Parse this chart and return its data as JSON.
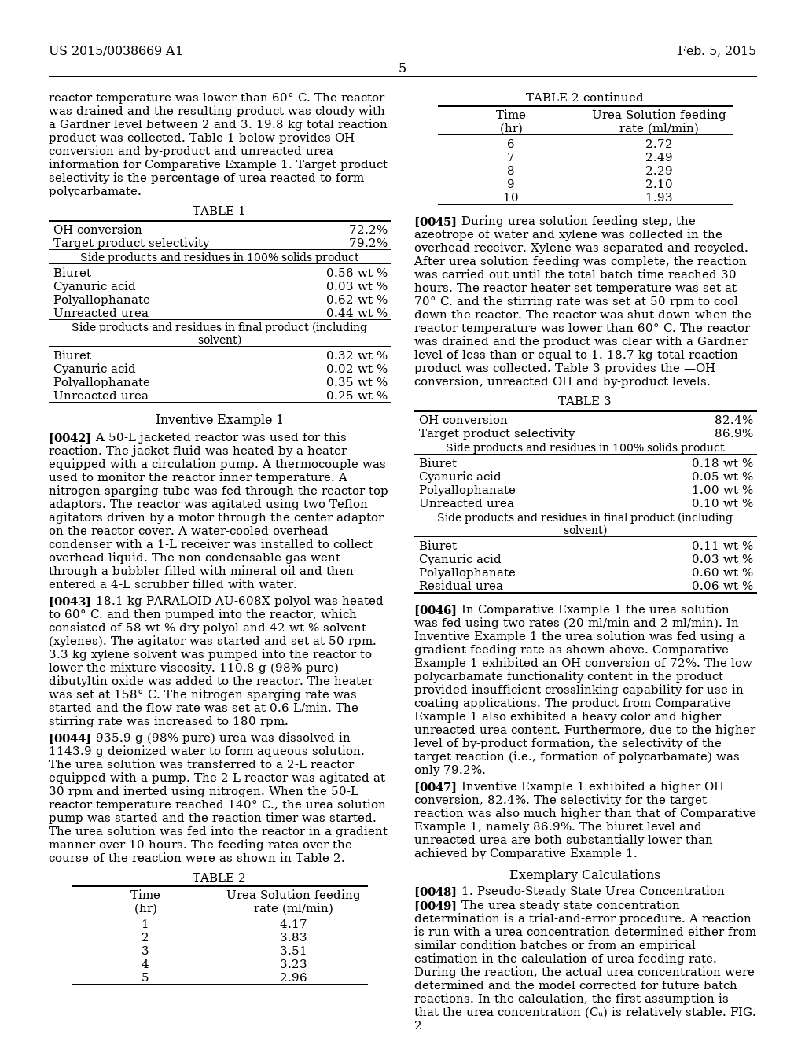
{
  "page_header_left": "US 2015/0038669 A1",
  "page_header_right": "Feb. 5, 2015",
  "page_number": "5",
  "left_col_intro": "reactor temperature was lower than 60° C. The reactor was drained and the resulting product was cloudy with a Gardner level between 2 and 3. 19.8 kg total reaction product was collected. Table 1 below provides OH conversion and by-product and unreacted urea information for Comparative Example 1. Target product selectivity is the percentage of urea reacted to form polycarbamate.",
  "table1_title": "TABLE 1",
  "table1_r1": [
    "OH conversion",
    "72.2%"
  ],
  "table1_r2": [
    "Target product selectivity",
    "79.2%"
  ],
  "table1_sub1": "Side products and residues in 100% solids product",
  "table1_g1": [
    [
      "Biuret",
      "0.56 wt %"
    ],
    [
      "Cyanuric acid",
      "0.03 wt %"
    ],
    [
      "Polyallophanate",
      "0.62 wt %"
    ],
    [
      "Unreacted urea",
      "0.44 wt %"
    ]
  ],
  "table1_sub2": "Side products and residues in final product (including solvent)",
  "table1_g2": [
    [
      "Biuret",
      "0.32 wt %"
    ],
    [
      "Cyanuric acid",
      "0.02 wt %"
    ],
    [
      "Polyallophanate",
      "0.35 wt %"
    ],
    [
      "Unreacted urea",
      "0.25 wt %"
    ]
  ],
  "inv_heading": "Inventive Example 1",
  "p0042": "A 50-L jacketed reactor was used for this reaction. The jacket fluid was heated by a heater equipped with a circulation pump. A thermocouple was used to monitor the reactor inner temperature. A nitrogen sparging tube was fed through the reactor top adaptors. The reactor was agitated using two Teflon agitators driven by a motor through the center adaptor on the reactor cover. A water-cooled overhead condenser with a 1-L receiver was installed to collect overhead liquid. The non-condensable gas went through a bubbler filled with mineral oil and then entered a 4-L scrubber filled with water.",
  "p0043": "18.1 kg PARALOID AU-608X polyol was heated to 60° C. and then pumped into the reactor, which consisted of 58 wt % dry polyol and 42 wt % solvent (xylenes). The agitator was started and set at 50 rpm. 3.3 kg xylene solvent was pumped into the reactor to lower the mixture viscosity. 110.8 g (98% pure) dibutyltin oxide was added to the reactor. The heater was set at 158° C. The nitrogen sparging rate was started and the flow rate was set at 0.6 L/min. The stirring rate was increased to 180 rpm.",
  "p0044": "935.9 g (98% pure) urea was dissolved in 1143.9 g deionized water to form aqueous solution. The urea solution was transferred to a 2-L reactor equipped with a pump. The 2-L reactor was agitated at 30 rpm and inerted using nitrogen. When the 50-L reactor temperature reached 140° C., the urea solution pump was started and the reaction timer was started. The urea solution was fed into the reactor in a gradient manner over 10 hours. The feeding rates over the course of the reaction were as shown in Table 2.",
  "table2_title": "TABLE 2",
  "table2_h1": "Time",
  "table2_h2": "(hr)",
  "table2_h3": "Urea Solution feeding",
  "table2_h4": "rate (ml/min)",
  "table2_rows": [
    [
      "1",
      "4.17"
    ],
    [
      "2",
      "3.83"
    ],
    [
      "3",
      "3.51"
    ],
    [
      "4",
      "3.23"
    ],
    [
      "5",
      "2.96"
    ]
  ],
  "table2c_title": "TABLE 2-continued",
  "table2c_rows": [
    [
      "6",
      "2.72"
    ],
    [
      "7",
      "2.49"
    ],
    [
      "8",
      "2.29"
    ],
    [
      "9",
      "2.10"
    ],
    [
      "10",
      "1.93"
    ]
  ],
  "p0045": "During urea solution feeding step, the azeotrope of water and xylene was collected in the overhead receiver. Xylene was separated and recycled. After urea solution feeding was complete, the reaction was carried out until the total batch time reached 30 hours. The reactor heater set temperature was set at 70° C. and the stirring rate was set at 50 rpm to cool down the reactor. The reactor was shut down when the reactor temperature was lower than 60° C. The reactor was drained and the product was clear with a Gardner level of less than or equal to 1. 18.7 kg total reaction product was collected. Table 3 provides the —OH conversion, unreacted OH and by-product levels.",
  "table3_title": "TABLE 3",
  "table3_r1": [
    "OH conversion",
    "82.4%"
  ],
  "table3_r2": [
    "Target product selectivity",
    "86.9%"
  ],
  "table3_sub1": "Side products and residues in 100% solids product",
  "table3_g1": [
    [
      "Biuret",
      "0.18 wt %"
    ],
    [
      "Cyanuric acid",
      "0.05 wt %"
    ],
    [
      "Polyallophanate",
      "1.00 wt %"
    ],
    [
      "Unreacted urea",
      "0.10 wt %"
    ]
  ],
  "table3_sub2": "Side products and residues in final product (including solvent)",
  "table3_g2": [
    [
      "Biuret",
      "0.11 wt %"
    ],
    [
      "Cyanuric acid",
      "0.03 wt %"
    ],
    [
      "Polyallophanate",
      "0.60 wt %"
    ],
    [
      "Residual urea",
      "0.06 wt %"
    ]
  ],
  "p0046": "In Comparative Example 1 the urea solution was fed using two rates (20 ml/min and 2 ml/min). In Inventive Example 1 the urea solution was fed using a gradient feeding rate as shown above. Comparative Example 1 exhibited an OH conversion of 72%. The low polycarbamate functionality content in the product provided insufficient crosslinking capability for use in coating applications. The product from Comparative Example 1 also exhibited a heavy color and higher unreacted urea content. Furthermore, due to the higher level of by-product formation, the selectivity of the target reaction (i.e., formation of polycarbamate) was only 79.2%.",
  "p0047": "Inventive Example 1 exhibited a higher OH conversion, 82.4%. The selectivity for the target reaction was also much higher than that of Comparative Example 1, namely 86.9%. The biuret level and unreacted urea are both substantially lower than achieved by Comparative Example 1.",
  "ex_calc_heading": "Exemplary Calculations",
  "p0048_line": "1. Pseudo-Steady State Urea Concentration",
  "p0049": "The urea steady state concentration determination is a trial-and-error procedure. A reaction is run with a urea concentration determined either from similar condition batches or from an empirical estimation in the calculation of urea feeding rate. During the reaction, the actual urea concentration were determined and the model corrected for future batch reactions. In the calculation, the first assumption is that the urea concentration (Cᵤ) is relatively stable. FIG. 2"
}
